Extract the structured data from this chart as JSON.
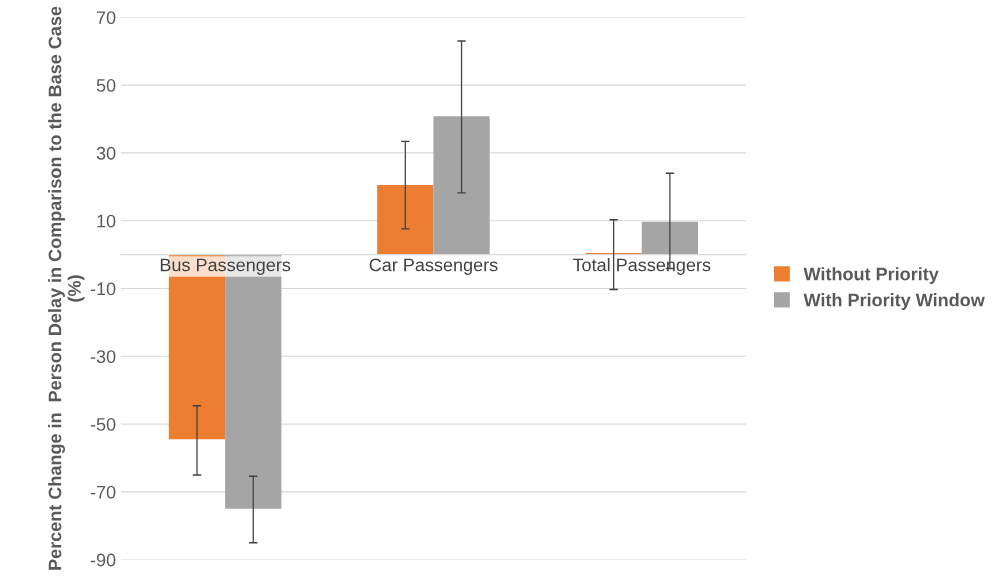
{
  "chart_data": {
    "type": "bar",
    "ylabel": "Percent Change in  Person Delay in Comparison to the Base Case (%)",
    "categories": [
      "Bus Passengers",
      "Car Passengers",
      "Total Passengers"
    ],
    "series": [
      {
        "name": "Without Priority",
        "color": "#ed7d31",
        "values": [
          -54.5,
          20.5,
          0.5
        ],
        "errors": [
          [
            -65,
            -44.6
          ],
          [
            7.6,
            33.4
          ],
          [
            -10.3,
            10.3
          ]
        ]
      },
      {
        "name": "With Priority Window",
        "color": "#a5a5a5",
        "values": [
          -75,
          40.8,
          9.7
        ],
        "errors": [
          [
            -85,
            -65.4
          ],
          [
            18.2,
            63
          ],
          [
            -4.1,
            24
          ]
        ]
      }
    ],
    "ylim": [
      -90,
      70
    ],
    "yticks": [
      -90,
      -70,
      -50,
      -30,
      -10,
      10,
      30,
      50,
      70
    ],
    "grid": "y",
    "legend": "right"
  }
}
